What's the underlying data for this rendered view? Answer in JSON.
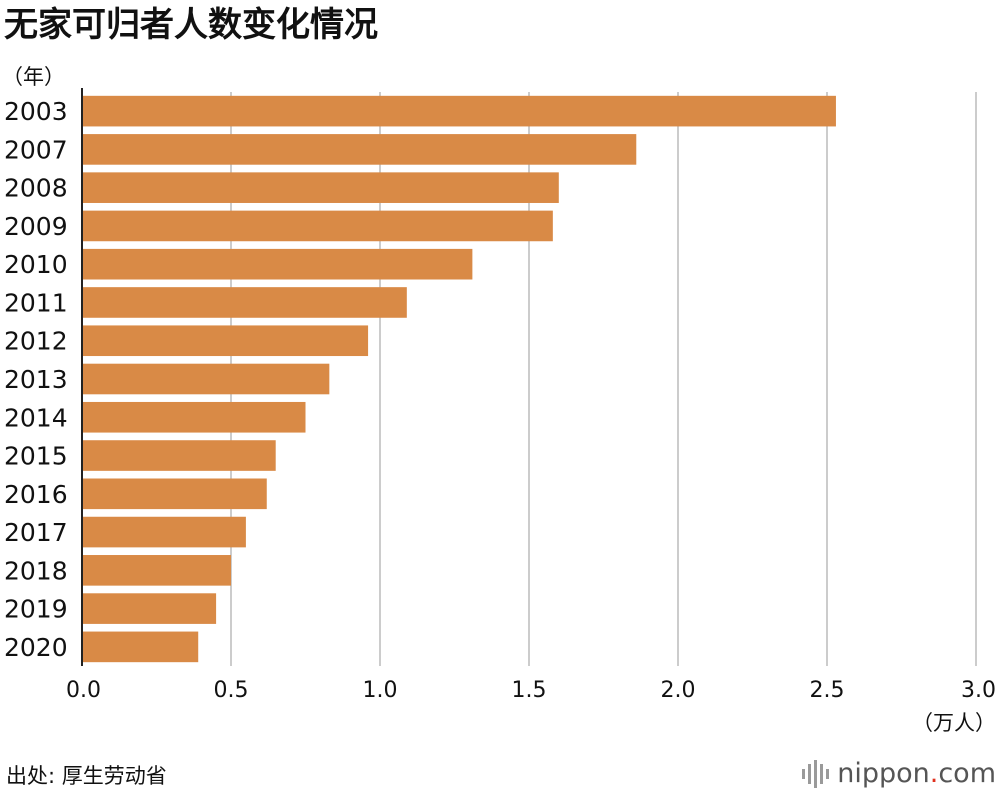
{
  "title": "无家可归者人数变化情况",
  "source": "出处: 厚生劳动省",
  "logo": {
    "name": "nippon",
    "dot": ".",
    "tld": "com"
  },
  "colors": {
    "bar": "#d98a46",
    "grid": "#cccccc",
    "text": "#111111",
    "logo_dot": "#e0301e"
  },
  "chart_data": {
    "type": "bar",
    "orientation": "horizontal",
    "title": "无家可归者人数变化情况",
    "ylabel": "（年）",
    "xlabel": "（万人）",
    "xlim": [
      0,
      3.0
    ],
    "xticks": [
      0,
      0.5,
      1.0,
      1.5,
      2.0,
      2.5,
      3.0
    ],
    "xtick_labels": [
      "0.0",
      "0.5",
      "1.0",
      "1.5",
      "2.0",
      "2.5",
      "3.0"
    ],
    "grid": true,
    "categories": [
      "2003",
      "2007",
      "2008",
      "2009",
      "2010",
      "2011",
      "2012",
      "2013",
      "2014",
      "2015",
      "2016",
      "2017",
      "2018",
      "2019",
      "2020"
    ],
    "values": [
      2.53,
      1.86,
      1.6,
      1.58,
      1.31,
      1.09,
      0.96,
      0.83,
      0.75,
      0.65,
      0.62,
      0.55,
      0.5,
      0.45,
      0.39
    ]
  }
}
